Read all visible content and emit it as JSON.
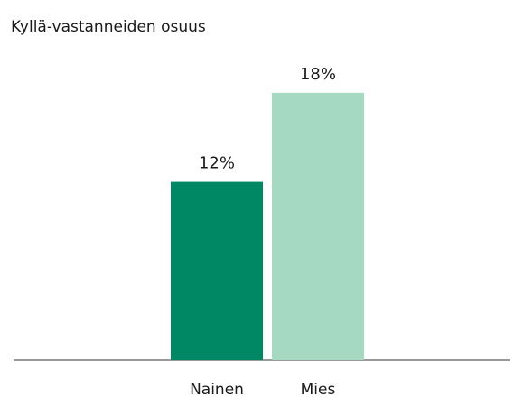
{
  "chart_data": {
    "type": "bar",
    "title": "Kyllä-vastanneiden osuus",
    "categories": [
      "Nainen",
      "Mies"
    ],
    "values": [
      12,
      18
    ],
    "value_labels": [
      "12%",
      "18%"
    ],
    "colors": [
      "#008763",
      "#a6d9c1"
    ],
    "ylim": [
      0,
      20
    ]
  }
}
